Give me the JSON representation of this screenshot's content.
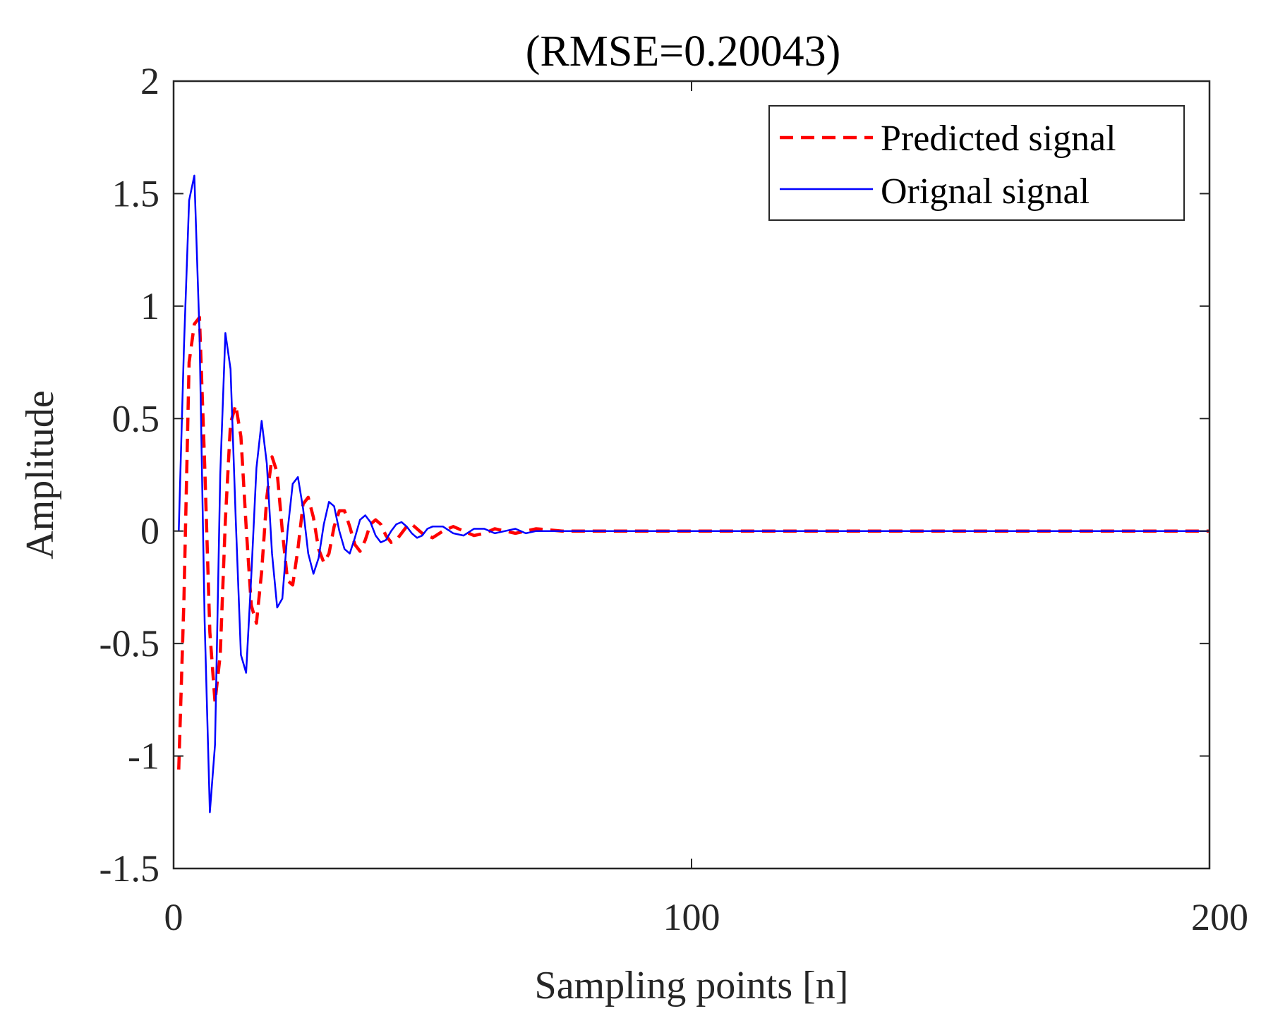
{
  "chart_data": {
    "type": "line",
    "title": "(RMSE=0.20043)",
    "xlabel": "Sampling points [n]",
    "ylabel": "Amplitude",
    "xlim": [
      0,
      200
    ],
    "ylim": [
      -1.5,
      2
    ],
    "xticks": [
      0,
      100,
      200
    ],
    "xtick_labels": [
      "0",
      "100",
      "200"
    ],
    "yticks": [
      -1.5,
      -1,
      -0.5,
      0,
      0.5,
      1,
      1.5,
      2
    ],
    "ytick_labels": [
      "-1.5",
      "-1",
      "-0.5",
      "0",
      "0.5",
      "1",
      "1.5",
      "2"
    ],
    "grid": false,
    "legend_position": "top-right",
    "series": [
      {
        "name": "Predicted signal",
        "color": "#ff0000",
        "style": "dashed",
        "x": [
          1,
          2,
          3,
          4,
          5,
          6,
          7,
          8,
          9,
          10,
          11,
          12,
          13,
          14,
          15,
          16,
          17,
          18,
          19,
          20,
          21,
          22,
          23,
          24,
          25,
          26,
          27,
          28,
          29,
          30,
          31,
          32,
          33,
          34,
          35,
          36,
          37,
          38,
          39,
          40,
          41,
          42,
          43,
          44,
          45,
          46,
          48,
          50,
          52,
          54,
          56,
          58,
          60,
          62,
          64,
          66,
          68,
          70,
          75,
          80,
          90,
          100,
          120,
          140,
          160,
          180,
          200
        ],
        "y": [
          -1.06,
          -0.3,
          0.75,
          0.92,
          0.95,
          0.3,
          -0.45,
          -0.76,
          -0.55,
          0.05,
          0.48,
          0.56,
          0.42,
          0.02,
          -0.33,
          -0.41,
          -0.18,
          0.15,
          0.33,
          0.26,
          0.0,
          -0.22,
          -0.24,
          -0.08,
          0.12,
          0.15,
          0.06,
          -0.08,
          -0.14,
          -0.1,
          0.02,
          0.09,
          0.09,
          0.02,
          -0.06,
          -0.09,
          -0.04,
          0.03,
          0.05,
          0.03,
          -0.02,
          -0.05,
          -0.04,
          -0.01,
          0.02,
          0.03,
          -0.01,
          -0.03,
          0.0,
          0.02,
          0.0,
          -0.02,
          -0.01,
          0.01,
          0.0,
          -0.01,
          0.0,
          0.01,
          0.0,
          0.0,
          0.0,
          0.0,
          0.0,
          0.0,
          0.0,
          0.0,
          0.0
        ]
      },
      {
        "name": "Orignal signal",
        "color": "#0000ff",
        "style": "solid",
        "x": [
          1,
          2,
          3,
          4,
          5,
          6,
          7,
          8,
          9,
          10,
          11,
          12,
          13,
          14,
          15,
          16,
          17,
          18,
          19,
          20,
          21,
          22,
          23,
          24,
          25,
          26,
          27,
          28,
          29,
          30,
          31,
          32,
          33,
          34,
          35,
          36,
          37,
          38,
          39,
          40,
          41,
          42,
          43,
          44,
          45,
          46,
          47,
          48,
          49,
          50,
          52,
          54,
          56,
          58,
          60,
          62,
          64,
          66,
          68,
          70,
          72,
          75,
          80,
          90,
          100,
          120,
          140,
          160,
          180,
          200
        ],
        "y": [
          0.0,
          0.82,
          1.47,
          1.58,
          0.88,
          -0.4,
          -1.25,
          -0.95,
          0.25,
          0.88,
          0.72,
          0.05,
          -0.55,
          -0.63,
          -0.2,
          0.28,
          0.49,
          0.3,
          -0.1,
          -0.34,
          -0.3,
          0.0,
          0.21,
          0.24,
          0.1,
          -0.1,
          -0.19,
          -0.12,
          0.03,
          0.13,
          0.11,
          0.0,
          -0.08,
          -0.1,
          -0.03,
          0.05,
          0.07,
          0.04,
          -0.02,
          -0.05,
          -0.04,
          0.0,
          0.03,
          0.04,
          0.02,
          -0.01,
          -0.03,
          -0.02,
          0.01,
          0.02,
          0.02,
          -0.01,
          -0.02,
          0.01,
          0.01,
          -0.01,
          0.0,
          0.01,
          -0.01,
          0.0,
          0.0,
          0.0,
          0.0,
          0.0,
          0.0,
          0.0,
          0.0,
          0.0,
          0.0,
          0.0
        ]
      }
    ]
  }
}
